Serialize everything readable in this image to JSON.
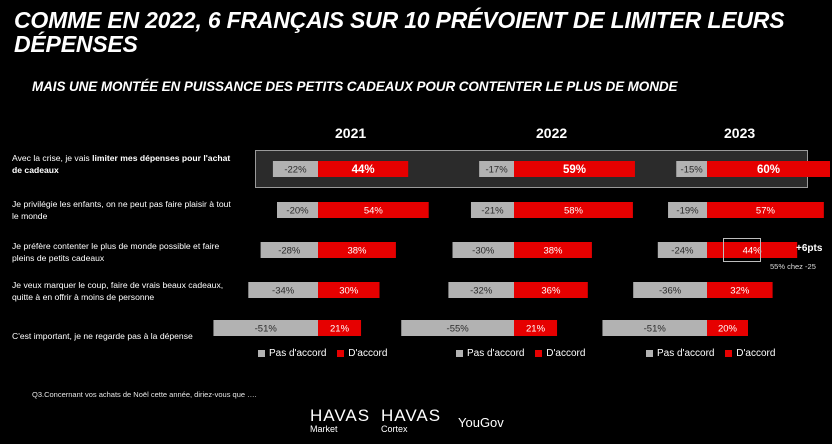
{
  "title": "Comme en 2022, 6 Français sur 10 prévoient de limiter leurs dépenses",
  "subtitle": "Mais une montée en puissance des petits cadeaux pour contenter le plus de monde",
  "chart_data": {
    "type": "bar",
    "subtype": "diverging-stacked-horizontal",
    "years": [
      "2021",
      "2022",
      "2023"
    ],
    "series_names": [
      "Pas d'accord",
      "D'accord"
    ],
    "colors": {
      "disagree": "#b2b2b2",
      "agree": "#e60000",
      "highlight_row": "#2b2b2b"
    },
    "statements": [
      {
        "pre": "Avec la crise, je vais ",
        "bold": "limiter mes dépenses pour l'achat de cadeaux",
        "post": "",
        "highlighted": true,
        "values": [
          {
            "disagree": -22,
            "agree": 44
          },
          {
            "disagree": -17,
            "agree": 59
          },
          {
            "disagree": -15,
            "agree": 60
          }
        ]
      },
      {
        "pre": "Je privilégie les enfants, on ne peut pas faire plaisir à tout le monde",
        "bold": "",
        "post": "",
        "highlighted": false,
        "values": [
          {
            "disagree": -20,
            "agree": 54
          },
          {
            "disagree": -21,
            "agree": 58
          },
          {
            "disagree": -19,
            "agree": 57
          }
        ]
      },
      {
        "pre": "Je préfère contenter le plus de monde possible et faire pleins de petits cadeaux",
        "bold": "",
        "post": "",
        "highlighted": false,
        "values": [
          {
            "disagree": -28,
            "agree": 38
          },
          {
            "disagree": -30,
            "agree": 38
          },
          {
            "disagree": -24,
            "agree": 44
          }
        ]
      },
      {
        "pre": "Je veux marquer le coup, faire de vrais beaux cadeaux, quitte à en offrir à moins de personne",
        "bold": "",
        "post": "",
        "highlighted": false,
        "values": [
          {
            "disagree": -34,
            "agree": 30
          },
          {
            "disagree": -32,
            "agree": 36
          },
          {
            "disagree": -36,
            "agree": 32
          }
        ]
      },
      {
        "pre": "C'est important, je ne regarde pas à la dépense",
        "bold": "",
        "post": "",
        "highlighted": false,
        "values": [
          {
            "disagree": -51,
            "agree": 21
          },
          {
            "disagree": -55,
            "agree": 21
          },
          {
            "disagree": -51,
            "agree": 20
          }
        ]
      }
    ],
    "annotation": {
      "change": "+6pts",
      "note": "55% chez -25"
    }
  },
  "legend": {
    "disagree": "Pas d'accord",
    "agree": "D'accord"
  },
  "footnote": "Q3.Concernant vos achats de Noël cette année, diriez-vous que ….",
  "logos": {
    "havas_market": {
      "brand": "HAVAS",
      "sub": "Market"
    },
    "havas_cortex": {
      "brand": "HAVAS",
      "sub": "Cortex"
    },
    "yougov": "YouGov"
  }
}
